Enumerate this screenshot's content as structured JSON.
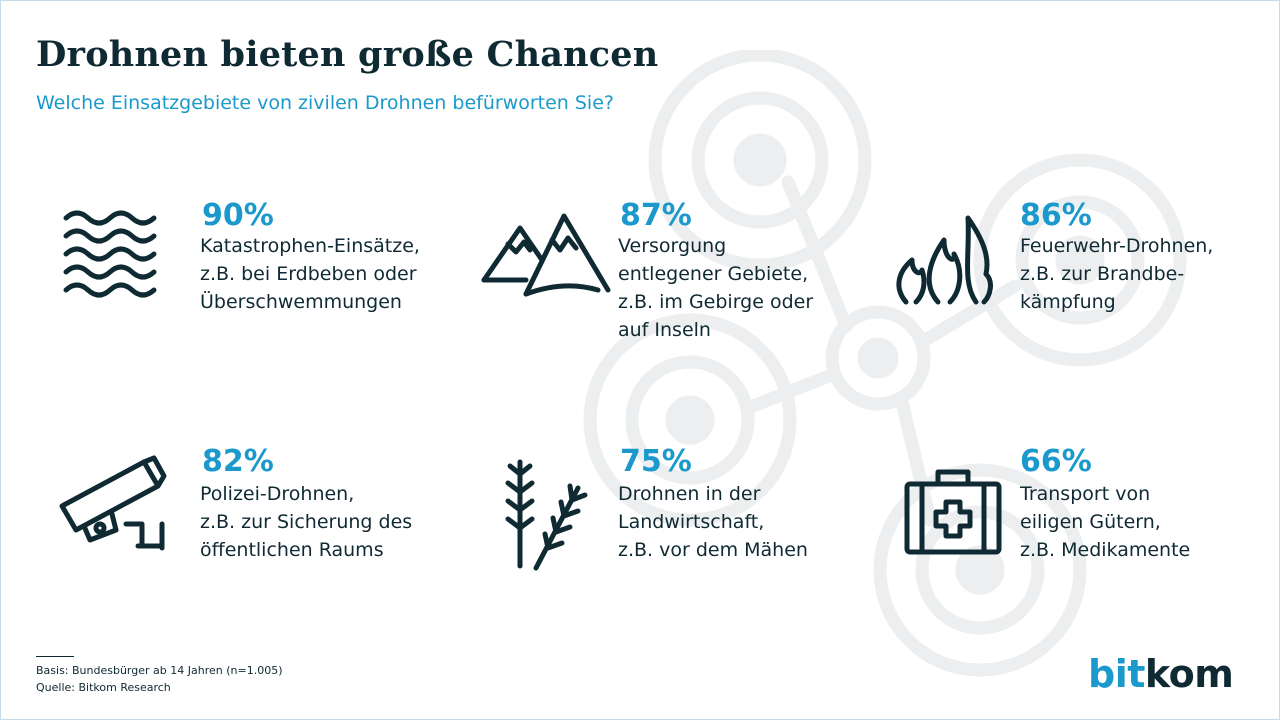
{
  "title": "Drohnen bieten große Chancen",
  "subtitle": "Welche Einsatzgebiete von zivilen Drohnen befürworten Sie?",
  "colors": {
    "accent": "#1b99cc",
    "dark": "#0f2a33",
    "watermark": "#eceeef",
    "frame": "#c6dce8"
  },
  "chart_data": {
    "type": "table",
    "title": "Drohnen bieten große Chancen",
    "subtitle": "Welche Einsatzgebiete von zivilen Drohnen befürworten Sie?",
    "categories": [
      "Katastrophen-Einsätze",
      "Versorgung entlegener Gebiete",
      "Feuerwehr-Drohnen",
      "Polizei-Drohnen",
      "Drohnen in der Landwirtschaft",
      "Transport von eiligen Gütern"
    ],
    "values": [
      90,
      87,
      86,
      82,
      75,
      66
    ],
    "unit": "%"
  },
  "items": [
    {
      "icon": "waves-icon",
      "percent_label": "90%",
      "lines": [
        "Katastrophen-Einsätze,",
        "z.B. bei Erdbeben oder",
        "Überschwemmungen"
      ]
    },
    {
      "icon": "mountains-icon",
      "percent_label": "87%",
      "lines": [
        "Versorgung",
        "entlegener Gebiete,",
        "z.B. im Gebirge oder",
        "auf Inseln"
      ]
    },
    {
      "icon": "flames-icon",
      "percent_label": "86%",
      "lines": [
        "Feuerwehr-Drohnen,",
        "z.B. zur Brandbe-",
        "kämpfung"
      ]
    },
    {
      "icon": "security-camera-icon",
      "percent_label": "82%",
      "lines": [
        "Polizei-Drohnen,",
        "z.B. zur Sicherung des",
        "öffentlichen Raums"
      ]
    },
    {
      "icon": "wheat-icon",
      "percent_label": "75%",
      "lines": [
        "Drohnen in der",
        "Landwirtschaft,",
        "z.B. vor dem Mähen"
      ]
    },
    {
      "icon": "first-aid-kit-icon",
      "percent_label": "66%",
      "lines": [
        "Transport von",
        "eiligen Gütern,",
        "z.B. Medikamente"
      ]
    }
  ],
  "footnote": {
    "basis": "Basis: Bundesbürger ab 14 Jahren (n=1.005)",
    "source": "Quelle: Bitkom Research"
  },
  "logo": {
    "part1": "bit",
    "part2": "kom"
  }
}
